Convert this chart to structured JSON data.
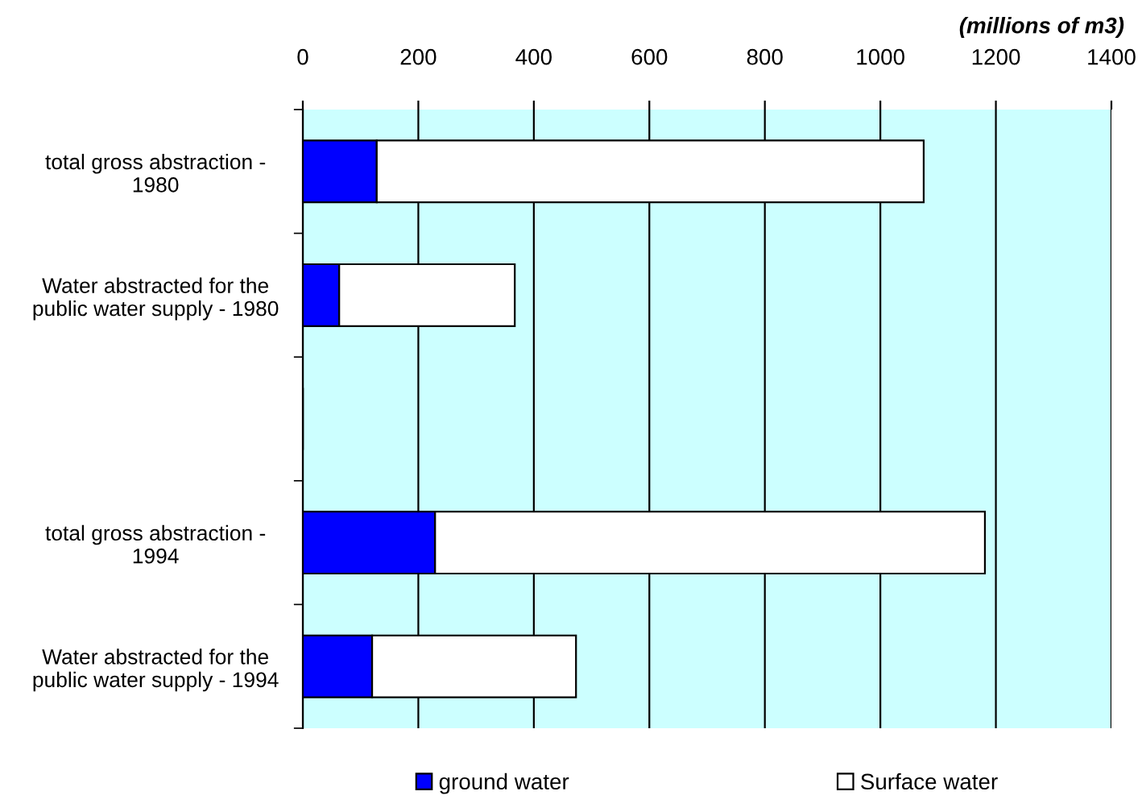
{
  "chart_data": {
    "type": "bar",
    "orientation": "horizontal",
    "stacked": true,
    "xlabel": "(millions of m3)",
    "categories": [
      "total gross abstraction - 1980",
      "Water abstracted for the public water supply - 1980",
      null,
      "total gross abstraction - 1994",
      "Water abstracted for the public water supply - 1994"
    ],
    "series": [
      {
        "name": "ground water",
        "color": "#0000ff",
        "values": [
          128,
          63,
          null,
          229,
          120
        ]
      },
      {
        "name": "Surface water",
        "color": "#ffffff",
        "values": [
          947,
          304,
          null,
          952,
          353
        ]
      }
    ],
    "xlim": [
      0,
      1400
    ],
    "xticks": [
      0,
      200,
      400,
      600,
      800,
      1000,
      1200,
      1400
    ],
    "grid": "x",
    "legend": "bottom"
  }
}
